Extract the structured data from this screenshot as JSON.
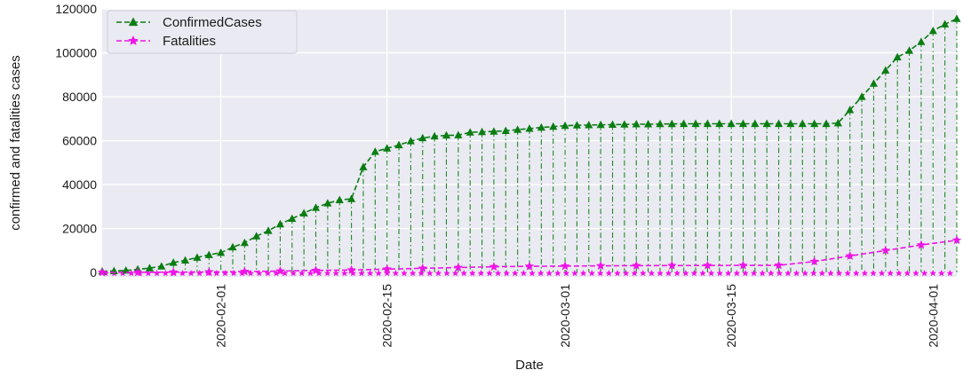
{
  "chart_data": {
    "type": "line",
    "xlabel": "Date",
    "ylabel": "confirmed and fatalities cases",
    "x_start": "2020-01-22",
    "x_end": "2020-04-03",
    "xlim": [
      "2020-01-22",
      "2020-04-03"
    ],
    "x_ticks": [
      "2020-02-01",
      "2020-02-15",
      "2020-03-01",
      "2020-03-15",
      "2020-04-01"
    ],
    "ylim": [
      -2000,
      120000
    ],
    "y_ticks": [
      0,
      20000,
      40000,
      60000,
      80000,
      100000,
      120000
    ],
    "y_tick_labels": [
      "0",
      "20000",
      "40000",
      "60000",
      "80000",
      "100000",
      "120000"
    ],
    "grid": true,
    "legend_position": "top-left",
    "series": [
      {
        "name": "ConfirmedCases",
        "color": "#0a7d12",
        "marker": "triangle",
        "linestyle": "dashed",
        "points": [
          [
            "2020-01-22",
            500
          ],
          [
            "2020-01-23",
            650
          ],
          [
            "2020-01-24",
            900
          ],
          [
            "2020-01-25",
            1400
          ],
          [
            "2020-01-26",
            2000
          ],
          [
            "2020-01-27",
            2800
          ],
          [
            "2020-01-28",
            4500
          ],
          [
            "2020-01-29",
            5500
          ],
          [
            "2020-01-30",
            6800
          ],
          [
            "2020-01-31",
            8000
          ],
          [
            "2020-02-01",
            9000
          ],
          [
            "2020-02-02",
            11500
          ],
          [
            "2020-02-03",
            13500
          ],
          [
            "2020-02-04",
            16500
          ],
          [
            "2020-02-05",
            19000
          ],
          [
            "2020-02-06",
            22000
          ],
          [
            "2020-02-07",
            24500
          ],
          [
            "2020-02-08",
            27000
          ],
          [
            "2020-02-09",
            29500
          ],
          [
            "2020-02-10",
            31500
          ],
          [
            "2020-02-11",
            33000
          ],
          [
            "2020-02-12",
            33500
          ],
          [
            "2020-02-13",
            48000
          ],
          [
            "2020-02-14",
            55000
          ],
          [
            "2020-02-15",
            56500
          ],
          [
            "2020-02-16",
            58000
          ],
          [
            "2020-02-17",
            59800
          ],
          [
            "2020-02-18",
            61200
          ],
          [
            "2020-02-19",
            62000
          ],
          [
            "2020-02-20",
            62400
          ],
          [
            "2020-02-21",
            62500
          ],
          [
            "2020-02-22",
            63800
          ],
          [
            "2020-02-23",
            64000
          ],
          [
            "2020-02-24",
            64200
          ],
          [
            "2020-02-25",
            64500
          ],
          [
            "2020-02-26",
            65000
          ],
          [
            "2020-02-27",
            65500
          ],
          [
            "2020-02-28",
            66000
          ],
          [
            "2020-02-29",
            66400
          ],
          [
            "2020-03-01",
            66800
          ],
          [
            "2020-03-02",
            67000
          ],
          [
            "2020-03-03",
            67100
          ],
          [
            "2020-03-04",
            67200
          ],
          [
            "2020-03-05",
            67300
          ],
          [
            "2020-03-06",
            67400
          ],
          [
            "2020-03-07",
            67500
          ],
          [
            "2020-03-08",
            67500
          ],
          [
            "2020-03-09",
            67600
          ],
          [
            "2020-03-10",
            67600
          ],
          [
            "2020-03-11",
            67700
          ],
          [
            "2020-03-12",
            67700
          ],
          [
            "2020-03-13",
            67700
          ],
          [
            "2020-03-14",
            67700
          ],
          [
            "2020-03-15",
            67700
          ],
          [
            "2020-03-16",
            67700
          ],
          [
            "2020-03-17",
            67700
          ],
          [
            "2020-03-18",
            67700
          ],
          [
            "2020-03-19",
            67700
          ],
          [
            "2020-03-20",
            67700
          ],
          [
            "2020-03-21",
            67700
          ],
          [
            "2020-03-22",
            67700
          ],
          [
            "2020-03-23",
            67700
          ],
          [
            "2020-03-24",
            68000
          ],
          [
            "2020-03-25",
            74000
          ],
          [
            "2020-03-26",
            80000
          ],
          [
            "2020-03-27",
            86000
          ],
          [
            "2020-03-28",
            92000
          ],
          [
            "2020-03-29",
            98000
          ],
          [
            "2020-03-30",
            101000
          ],
          [
            "2020-03-31",
            105000
          ],
          [
            "2020-04-01",
            110000
          ],
          [
            "2020-04-02",
            113000
          ],
          [
            "2020-04-03",
            115500
          ]
        ]
      },
      {
        "name": "Fatalities",
        "color": "#ee14e6",
        "marker": "star",
        "linestyle": "dashed",
        "points": [
          [
            "2020-01-22",
            17
          ],
          [
            "2020-01-25",
            56
          ],
          [
            "2020-01-28",
            132
          ],
          [
            "2020-01-31",
            213
          ],
          [
            "2020-02-03",
            425
          ],
          [
            "2020-02-06",
            636
          ],
          [
            "2020-02-09",
            908
          ],
          [
            "2020-02-12",
            1113
          ],
          [
            "2020-02-15",
            1523
          ],
          [
            "2020-02-18",
            1870
          ],
          [
            "2020-02-21",
            2236
          ],
          [
            "2020-02-24",
            2595
          ],
          [
            "2020-02-27",
            2788
          ],
          [
            "2020-03-01",
            2872
          ],
          [
            "2020-03-04",
            3012
          ],
          [
            "2020-03-07",
            3070
          ],
          [
            "2020-03-10",
            3140
          ],
          [
            "2020-03-13",
            3180
          ],
          [
            "2020-03-16",
            3220
          ],
          [
            "2020-03-19",
            3249
          ],
          [
            "2020-03-22",
            5000
          ],
          [
            "2020-03-25",
            7500
          ],
          [
            "2020-03-28",
            10000
          ],
          [
            "2020-03-31",
            12500
          ],
          [
            "2020-04-03",
            14700
          ]
        ]
      }
    ]
  }
}
